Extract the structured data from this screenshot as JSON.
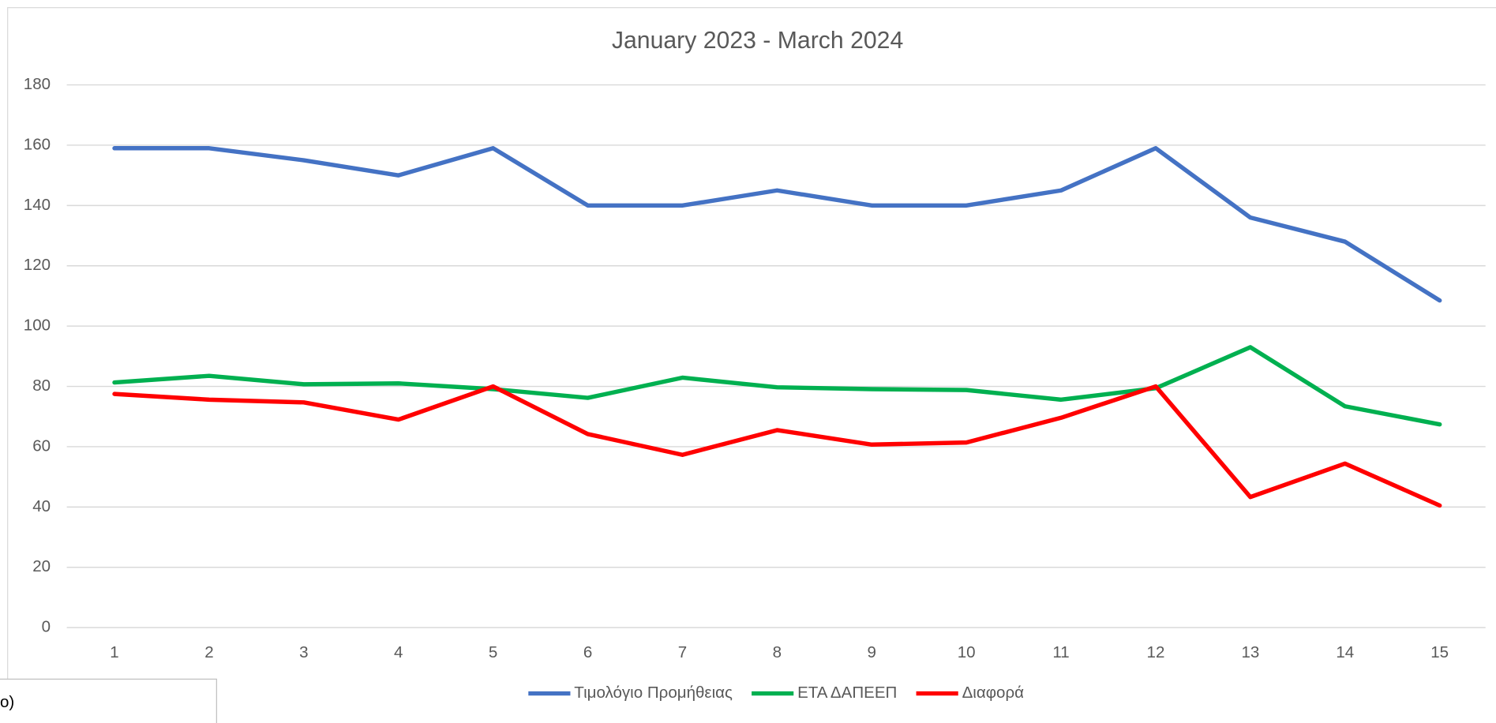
{
  "chart_data": {
    "type": "line",
    "title": "January 2023 - March 2024",
    "categories": [
      "1",
      "2",
      "3",
      "4",
      "5",
      "6",
      "7",
      "8",
      "9",
      "10",
      "11",
      "12",
      "13",
      "14",
      "15"
    ],
    "series": [
      {
        "name": "Τιμολόγιο Προμήθειας",
        "color": "#4472c4",
        "values": [
          159,
          159,
          155,
          150,
          159,
          140,
          140,
          145,
          140,
          140,
          145,
          159,
          136,
          128,
          108.5
        ]
      },
      {
        "name": "ΕΤΑ ΔΑΠΕΕΠ",
        "color": "#00b050",
        "values": [
          81.3,
          83.5,
          80.7,
          81,
          79.1,
          76.2,
          82.9,
          79.7,
          79.1,
          78.8,
          75.6,
          79.4,
          93,
          73.4,
          67.4
        ]
      },
      {
        "name": "Διαφορά",
        "color": "#ff0000",
        "values": [
          77.5,
          75.6,
          74.7,
          69,
          80,
          64.2,
          57.3,
          65.5,
          60.7,
          61.4,
          69.6,
          80,
          43.3,
          54.4,
          40.5
        ]
      }
    ],
    "ylim": [
      0,
      180
    ],
    "yticks": [
      0,
      20,
      40,
      60,
      80,
      100,
      120,
      140,
      160,
      180
    ],
    "grid": true,
    "legend": "bottom"
  },
  "overlay_text": "o)"
}
